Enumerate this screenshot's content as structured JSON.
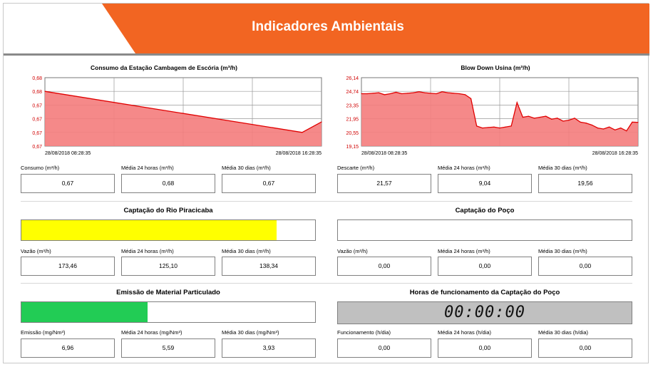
{
  "header": {
    "title": "Indicadores Ambientais",
    "accent_color": "#f26522",
    "line_color": "#8a8a8a"
  },
  "charts": {
    "left": {
      "title": "Consumo da Estação Cambagem de Escória (m³/h)",
      "y_ticks": [
        "0,68",
        "0,68",
        "0,67",
        "0,67",
        "0,67",
        "0,67"
      ],
      "x_start": "28/08/2018 08:28:35",
      "x_end": "28/08/2018 16:28:35"
    },
    "right": {
      "title": "Blow Down Usina (m³/h)",
      "y_ticks": [
        "26,14",
        "24,74",
        "23,35",
        "21,95",
        "20,55",
        "19,15"
      ],
      "x_start": "28/08/2018 08:28:35",
      "x_end": "28/08/2018 16:28:35"
    }
  },
  "chart_data": [
    {
      "type": "area",
      "title": "Consumo da Estação Cambagem de Escória (m³/h)",
      "x": [
        "28/08/2018 08:28:35",
        "28/08/2018 15:28:35",
        "28/08/2018 16:28:35"
      ],
      "y": [
        0.68,
        0.67,
        0.67
      ],
      "ylim": [
        0.67,
        0.68
      ],
      "grid": true,
      "color": "#e00000",
      "fill": "#f47c7c"
    },
    {
      "type": "area",
      "title": "Blow Down Usina (m³/h)",
      "x_range": [
        "28/08/2018 08:28:35",
        "28/08/2018 16:28:35"
      ],
      "y": [
        24.5,
        24.5,
        24.55,
        24.6,
        24.4,
        24.5,
        24.65,
        24.5,
        24.55,
        24.6,
        24.7,
        24.6,
        24.55,
        24.5,
        24.7,
        24.6,
        24.55,
        24.5,
        24.4,
        24.0,
        21.2,
        21.0,
        21.05,
        21.1,
        21.0,
        21.1,
        21.2,
        23.6,
        22.1,
        22.2,
        22.0,
        22.1,
        22.2,
        21.9,
        22.0,
        21.7,
        21.8,
        22.0,
        21.6,
        21.5,
        21.3,
        21.0,
        20.9,
        21.1,
        20.8,
        21.0,
        20.7,
        21.6,
        21.57
      ],
      "ylim": [
        19.15,
        26.14
      ],
      "yticks": [
        26.14,
        24.74,
        23.35,
        21.95,
        20.55,
        19.15
      ],
      "grid": true,
      "color": "#e00000",
      "fill": "#f47c7c"
    }
  ],
  "consumo_fields": [
    {
      "label": "Consumo (m³/h)",
      "value": "0,67"
    },
    {
      "label": "Média 24 horas (m³/h)",
      "value": "0,68"
    },
    {
      "label": "Média 30 dias (m³/h)",
      "value": "0,67"
    }
  ],
  "blowdown_fields": [
    {
      "label": "Descarte (m³/h)",
      "value": "21,57"
    },
    {
      "label": "Média 24 horas (m³/h)",
      "value": "9,04"
    },
    {
      "label": "Média 30 dias (m³/h)",
      "value": "19,56"
    }
  ],
  "rio": {
    "title": "Captação do Rio Piracicaba",
    "level_fraction": 0.87,
    "bar_color": "#ffff00",
    "fields": [
      {
        "label": "Vazão (m³/h)",
        "value": "173,46"
      },
      {
        "label": "Média 24 horas (m³/h)",
        "value": "125,10"
      },
      {
        "label": "Média 30 dias (m³/h)",
        "value": "138,34"
      }
    ]
  },
  "poco": {
    "title": "Captação do Poço",
    "level_fraction": 0,
    "fields": [
      {
        "label": "Vazão (m³/h)",
        "value": "0,00"
      },
      {
        "label": "Média 24 horas (m³/h)",
        "value": "0,00"
      },
      {
        "label": "Média 30 dias (m³/h)",
        "value": "0,00"
      }
    ]
  },
  "emissao": {
    "title": "Emissão de Material Particulado",
    "level_fraction": 0.43,
    "bar_color": "#22cc55",
    "fields": [
      {
        "label": "Emissão (mg/Nm³)",
        "value": "6,96"
      },
      {
        "label": "Média 24 horas (mg/Nm³)",
        "value": "5,59"
      },
      {
        "label": "Média 30 dias (mg/Nm³)",
        "value": "3,93"
      }
    ]
  },
  "horas": {
    "title": "Horas de funcionamento da Captação do Poço",
    "clock": "00:00:00",
    "fields": [
      {
        "label": "Funcionamento (h/dia)",
        "value": "0,00"
      },
      {
        "label": "Média 24 horas (h/dia)",
        "value": "0,00"
      },
      {
        "label": "Média 30 dias (h/dia)",
        "value": "0,00"
      }
    ]
  }
}
